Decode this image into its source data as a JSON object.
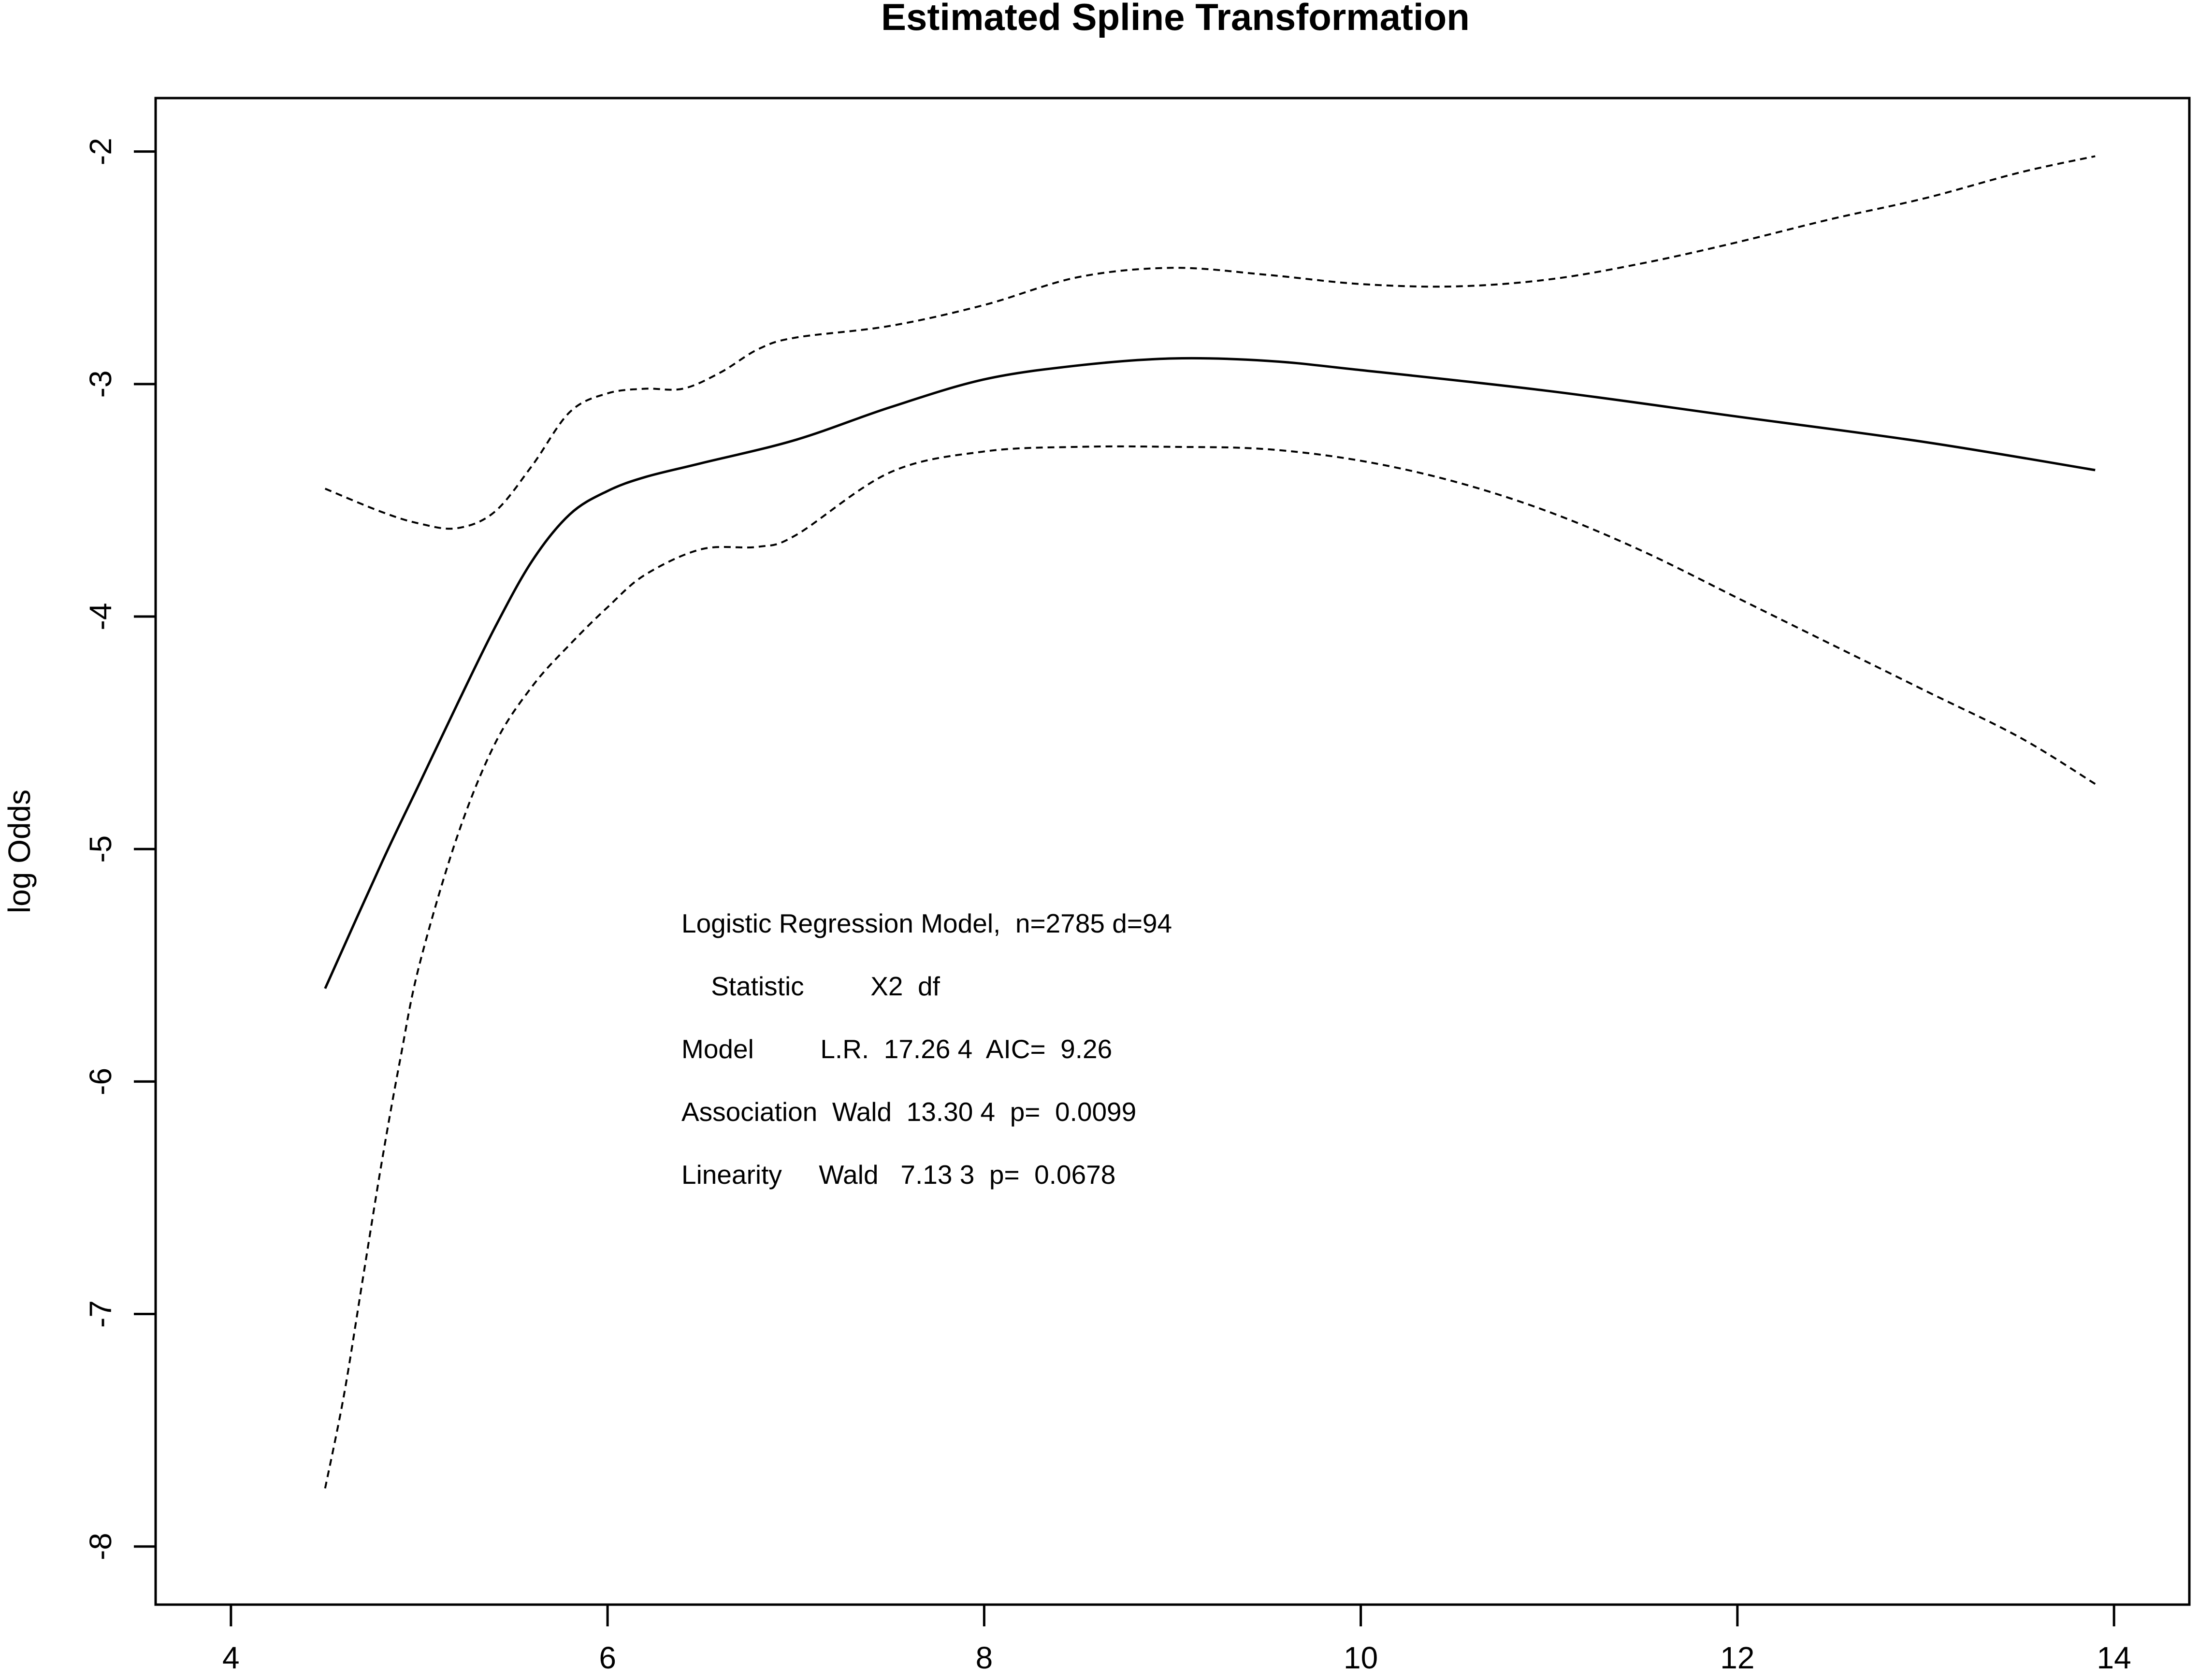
{
  "chart_data": {
    "type": "line",
    "title": "Estimated Spline Transformation",
    "xlabel": "",
    "ylabel": "log Odds",
    "xlim": [
      3.6,
      14.4
    ],
    "ylim": [
      -8.25,
      -1.77
    ],
    "x_ticks": [
      4,
      6,
      8,
      10,
      12,
      14
    ],
    "y_ticks": [
      -2,
      -3,
      -4,
      -5,
      -6,
      -7,
      -8
    ],
    "grid": false,
    "legend": "none",
    "series": [
      {
        "style": "solid",
        "color": "#000000",
        "points": [
          [
            4.5,
            -5.6
          ],
          [
            4.8,
            -5.06
          ],
          [
            5.0,
            -4.72
          ],
          [
            5.2,
            -4.38
          ],
          [
            5.4,
            -4.05
          ],
          [
            5.6,
            -3.76
          ],
          [
            5.8,
            -3.56
          ],
          [
            6.0,
            -3.46
          ],
          [
            6.2,
            -3.4
          ],
          [
            6.5,
            -3.34
          ],
          [
            7.0,
            -3.24
          ],
          [
            7.5,
            -3.1
          ],
          [
            8.0,
            -2.98
          ],
          [
            8.5,
            -2.92
          ],
          [
            9.0,
            -2.89
          ],
          [
            9.5,
            -2.9
          ],
          [
            10.0,
            -2.94
          ],
          [
            11.0,
            -3.03
          ],
          [
            12.0,
            -3.14
          ],
          [
            13.0,
            -3.25
          ],
          [
            13.9,
            -3.37
          ]
        ]
      },
      {
        "style": "dashed",
        "color": "#000000",
        "points": [
          [
            4.5,
            -3.45
          ],
          [
            4.8,
            -3.55
          ],
          [
            5.0,
            -3.6
          ],
          [
            5.2,
            -3.62
          ],
          [
            5.4,
            -3.55
          ],
          [
            5.6,
            -3.35
          ],
          [
            5.8,
            -3.12
          ],
          [
            6.0,
            -3.04
          ],
          [
            6.2,
            -3.02
          ],
          [
            6.4,
            -3.02
          ],
          [
            6.6,
            -2.95
          ],
          [
            6.8,
            -2.85
          ],
          [
            7.0,
            -2.8
          ],
          [
            7.5,
            -2.75
          ],
          [
            8.0,
            -2.66
          ],
          [
            8.5,
            -2.54
          ],
          [
            9.0,
            -2.5
          ],
          [
            9.5,
            -2.53
          ],
          [
            10.0,
            -2.57
          ],
          [
            10.5,
            -2.58
          ],
          [
            11.0,
            -2.55
          ],
          [
            11.5,
            -2.48
          ],
          [
            12.0,
            -2.39
          ],
          [
            12.5,
            -2.29
          ],
          [
            13.0,
            -2.2
          ],
          [
            13.5,
            -2.09
          ],
          [
            13.9,
            -2.02
          ]
        ]
      },
      {
        "style": "dashed",
        "color": "#000000",
        "points": [
          [
            4.5,
            -7.75
          ],
          [
            4.6,
            -7.35
          ],
          [
            4.7,
            -6.85
          ],
          [
            4.8,
            -6.35
          ],
          [
            4.9,
            -5.9
          ],
          [
            5.0,
            -5.5
          ],
          [
            5.2,
            -4.95
          ],
          [
            5.4,
            -4.55
          ],
          [
            5.6,
            -4.3
          ],
          [
            5.8,
            -4.12
          ],
          [
            6.0,
            -3.96
          ],
          [
            6.2,
            -3.82
          ],
          [
            6.5,
            -3.71
          ],
          [
            6.8,
            -3.7
          ],
          [
            7.0,
            -3.65
          ],
          [
            7.5,
            -3.38
          ],
          [
            8.0,
            -3.29
          ],
          [
            8.5,
            -3.27
          ],
          [
            9.0,
            -3.27
          ],
          [
            9.5,
            -3.28
          ],
          [
            10.0,
            -3.33
          ],
          [
            10.5,
            -3.42
          ],
          [
            11.0,
            -3.55
          ],
          [
            11.5,
            -3.72
          ],
          [
            12.0,
            -3.92
          ],
          [
            12.5,
            -4.12
          ],
          [
            13.0,
            -4.32
          ],
          [
            13.5,
            -4.52
          ],
          [
            13.9,
            -4.72
          ]
        ]
      }
    ],
    "annotations": [
      "Logistic Regression Model,  n=2785 d=94",
      "    Statistic         X2  df",
      "Model         L.R.  17.26 4  AIC=  9.26",
      "Association  Wald  13.30 4  p=  0.0099",
      "Linearity     Wald   7.13 3  p=  0.0678"
    ]
  }
}
